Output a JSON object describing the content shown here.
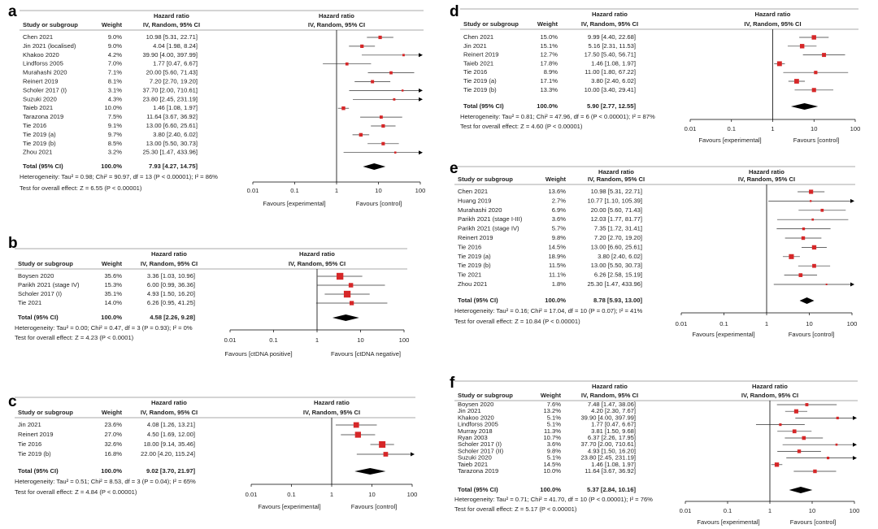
{
  "chart_data": [
    {
      "type": "forest",
      "panel": "a",
      "headers": {
        "study": "Study or subgroup",
        "weight": "Weight",
        "hr_title": "Hazard ratio",
        "hr_method": "IV, Random, 95% CI",
        "plot_title": "Hazard ratio",
        "plot_method": "IV, Random, 95% CI"
      },
      "rows": [
        {
          "study": "Chen 2021",
          "weight": 9.0,
          "weight_label": "9.0%",
          "hr": 10.98,
          "lo": 5.31,
          "hi": 22.71,
          "ci_label": "10.98 [5.31, 22.71]"
        },
        {
          "study": "Jin 2021 (localised)",
          "weight": 9.0,
          "weight_label": "9.0%",
          "hr": 4.04,
          "lo": 1.98,
          "hi": 8.24,
          "ci_label": "4.04 [1.98, 8.24]"
        },
        {
          "study": "Khakoo 2020",
          "weight": 4.2,
          "weight_label": "4.2%",
          "hr": 39.9,
          "lo": 4.0,
          "hi": 397.99,
          "ci_label": "39.90 [4.00, 397.99]"
        },
        {
          "study": "Lindforss 2005",
          "weight": 7.0,
          "weight_label": "7.0%",
          "hr": 1.77,
          "lo": 0.47,
          "hi": 6.67,
          "ci_label": "1.77 [0.47, 6.67]"
        },
        {
          "study": "Murahashi 2020",
          "weight": 7.1,
          "weight_label": "7.1%",
          "hr": 20.0,
          "lo": 5.6,
          "hi": 71.43,
          "ci_label": "20.00 [5.60, 71.43]"
        },
        {
          "study": "Reinert 2019",
          "weight": 8.1,
          "weight_label": "8.1%",
          "hr": 7.2,
          "lo": 2.7,
          "hi": 19.2,
          "ci_label": "7.20 [2.70, 19.20]"
        },
        {
          "study": "Scholer 2017 (I)",
          "weight": 3.1,
          "weight_label": "3.1%",
          "hr": 37.7,
          "lo": 2.0,
          "hi": 710.61,
          "ci_label": "37.70 [2.00, 710.61]"
        },
        {
          "study": "Suzuki 2020",
          "weight": 4.3,
          "weight_label": "4.3%",
          "hr": 23.8,
          "lo": 2.45,
          "hi": 231.19,
          "ci_label": "23.80 [2.45, 231.19]"
        },
        {
          "study": "Taieb 2021",
          "weight": 10.0,
          "weight_label": "10.0%",
          "hr": 1.46,
          "lo": 1.08,
          "hi": 1.97,
          "ci_label": "1.46 [1.08, 1.97]"
        },
        {
          "study": "Tarazona 2019",
          "weight": 7.5,
          "weight_label": "7.5%",
          "hr": 11.64,
          "lo": 3.67,
          "hi": 36.92,
          "ci_label": "11.64 [3.67, 36.92]"
        },
        {
          "study": "Tie 2016",
          "weight": 9.1,
          "weight_label": "9.1%",
          "hr": 13.0,
          "lo": 6.6,
          "hi": 25.61,
          "ci_label": "13.00 [6.60, 25.61]"
        },
        {
          "study": "Tie 2019 (a)",
          "weight": 9.7,
          "weight_label": "9.7%",
          "hr": 3.8,
          "lo": 2.4,
          "hi": 6.02,
          "ci_label": "3.80 [2.40, 6.02]"
        },
        {
          "study": "Tie 2019 (b)",
          "weight": 8.5,
          "weight_label": "8.5%",
          "hr": 13.0,
          "lo": 5.5,
          "hi": 30.73,
          "ci_label": "13.00 [5.50, 30.73]"
        },
        {
          "study": "Zhou 2021",
          "weight": 3.2,
          "weight_label": "3.2%",
          "hr": 25.3,
          "lo": 1.47,
          "hi": 433.96,
          "ci_label": "25.30 [1.47, 433.96]"
        }
      ],
      "total": {
        "study": "Total (95% CI)",
        "weight": 100.0,
        "weight_label": "100.0%",
        "hr": 7.93,
        "lo": 4.27,
        "hi": 14.75,
        "ci_label": "7.93 [4.27, 14.75]"
      },
      "heterogeneity": "Heterogeneity: Tau² = 0.98; Chi² = 90.97, df = 13 (P < 0.00001); I² = 86%",
      "overall_effect": "Test for overall effect: Z = 6.55 (P < 0.00001)",
      "xscale": "log",
      "xlim": [
        0.01,
        100
      ],
      "xticks": [
        0.01,
        0.1,
        1,
        10,
        100
      ],
      "reference_line": 1,
      "favours_left": "Favours [experimental]",
      "favours_right": "Favours [control]",
      "color": "#d62728"
    },
    {
      "type": "forest",
      "panel": "b",
      "headers": {
        "study": "Study or subgroup",
        "weight": "Weight",
        "hr_title": "Hazard ratio",
        "hr_method": "IV, Random, 95% CI",
        "plot_title": "Hazard ratio",
        "plot_method": "IV, Random, 95% CI"
      },
      "rows": [
        {
          "study": "Boysen 2020",
          "weight": 35.6,
          "weight_label": "35.6%",
          "hr": 3.36,
          "lo": 1.03,
          "hi": 10.96,
          "ci_label": "3.36 [1.03, 10.96]"
        },
        {
          "study": "Parikh 2021 (stage IV)",
          "weight": 15.3,
          "weight_label": "15.3%",
          "hr": 6.0,
          "lo": 0.99,
          "hi": 36.36,
          "ci_label": "6.00 [0.99, 36.36]"
        },
        {
          "study": "Scholer 2017 (I)",
          "weight": 35.1,
          "weight_label": "35.1%",
          "hr": 4.93,
          "lo": 1.5,
          "hi": 16.2,
          "ci_label": "4.93 [1.50, 16.20]"
        },
        {
          "study": "Tie 2021",
          "weight": 14.0,
          "weight_label": "14.0%",
          "hr": 6.26,
          "lo": 0.95,
          "hi": 41.25,
          "ci_label": "6.26 [0.95, 41.25]"
        }
      ],
      "total": {
        "study": "Total (95% CI)",
        "weight": 100.0,
        "weight_label": "100.0%",
        "hr": 4.58,
        "lo": 2.26,
        "hi": 9.28,
        "ci_label": "4.58 [2.26, 9.28]"
      },
      "heterogeneity": "Heterogeneity: Tau² = 0.00; Chi² = 0.47, df = 3 (P = 0.93); I² = 0%",
      "overall_effect": "Test for overall effect: Z = 4.23 (P < 0.0001)",
      "xscale": "log",
      "xlim": [
        0.01,
        100
      ],
      "xticks": [
        0.01,
        0.1,
        1,
        10,
        100
      ],
      "reference_line": 1,
      "favours_left": "Favours [ctDNA positive]",
      "favours_right": "Favours [ctDNA negative]",
      "color": "#d62728"
    },
    {
      "type": "forest",
      "panel": "c",
      "headers": {
        "study": "Study or subgroup",
        "weight": "Weight",
        "hr_title": "Hazard ratio",
        "hr_method": "IV, Random, 95% CI",
        "plot_title": "Hazard ratio",
        "plot_method": "IV, Random, 95% CI"
      },
      "rows": [
        {
          "study": "Jin 2021",
          "weight": 23.6,
          "weight_label": "23.6%",
          "hr": 4.08,
          "lo": 1.26,
          "hi": 13.21,
          "ci_label": "4.08 [1.26, 13.21]"
        },
        {
          "study": "Reinert 2019",
          "weight": 27.0,
          "weight_label": "27.0%",
          "hr": 4.5,
          "lo": 1.69,
          "hi": 12.0,
          "ci_label": "4.50 [1.69, 12.00]"
        },
        {
          "study": "Tie 2016",
          "weight": 32.6,
          "weight_label": "32.6%",
          "hr": 18.0,
          "lo": 9.14,
          "hi": 35.46,
          "ci_label": "18.00 [9.14, 35.46]"
        },
        {
          "study": "Tie 2019 (b)",
          "weight": 16.8,
          "weight_label": "16.8%",
          "hr": 22.0,
          "lo": 4.2,
          "hi": 115.24,
          "ci_label": "22.00 [4.20, 115.24]"
        }
      ],
      "total": {
        "study": "Total (95% CI)",
        "weight": 100.0,
        "weight_label": "100.0%",
        "hr": 9.02,
        "lo": 3.7,
        "hi": 21.97,
        "ci_label": "9.02 [3.70, 21.97]"
      },
      "heterogeneity": "Heterogeneity: Tau² = 0.51; Chi² = 8.53, df = 3 (P = 0.04); I² = 65%",
      "overall_effect": "Test for overall effect: Z = 4.84 (P < 0.00001)",
      "xscale": "log",
      "xlim": [
        0.01,
        100
      ],
      "xticks": [
        0.01,
        0.1,
        1,
        10,
        100
      ],
      "reference_line": 1,
      "favours_left": "Favours [experimental]",
      "favours_right": "Favours [control]",
      "color": "#d62728"
    },
    {
      "type": "forest",
      "panel": "d",
      "headers": {
        "study": "Study or subgroup",
        "weight": "Weight",
        "hr_title": "Hazard ratio",
        "hr_method": "IV, Random, 95% CI",
        "plot_title": "Hazard ratio",
        "plot_method": "IV, Random, 95% CI"
      },
      "rows": [
        {
          "study": "Chen 2021",
          "weight": 15.0,
          "weight_label": "15.0%",
          "hr": 9.99,
          "lo": 4.4,
          "hi": 22.68,
          "ci_label": "9.99 [4.40, 22.68]"
        },
        {
          "study": "Jin 2021",
          "weight": 15.1,
          "weight_label": "15.1%",
          "hr": 5.16,
          "lo": 2.31,
          "hi": 11.53,
          "ci_label": "5.16 [2.31, 11.53]"
        },
        {
          "study": "Reinert 2019",
          "weight": 12.7,
          "weight_label": "12.7%",
          "hr": 17.5,
          "lo": 5.4,
          "hi": 56.71,
          "ci_label": "17.50 [5.40, 56.71]"
        },
        {
          "study": "Taieb 2021",
          "weight": 17.8,
          "weight_label": "17.8%",
          "hr": 1.46,
          "lo": 1.08,
          "hi": 1.97,
          "ci_label": "1.46 [1.08, 1.97]"
        },
        {
          "study": "Tie 2016",
          "weight": 8.9,
          "weight_label": "8.9%",
          "hr": 11.0,
          "lo": 1.8,
          "hi": 67.22,
          "ci_label": "11.00 [1.80, 67.22]"
        },
        {
          "study": "Tie 2019 (a)",
          "weight": 17.1,
          "weight_label": "17.1%",
          "hr": 3.8,
          "lo": 2.4,
          "hi": 6.02,
          "ci_label": "3.80 [2.40, 6.02]"
        },
        {
          "study": "Tie 2019 (b)",
          "weight": 13.3,
          "weight_label": "13.3%",
          "hr": 10.0,
          "lo": 3.4,
          "hi": 29.41,
          "ci_label": "10.00 [3.40, 29.41]"
        }
      ],
      "total": {
        "study": "Total (95% CI)",
        "weight": 100.0,
        "weight_label": "100.0%",
        "hr": 5.9,
        "lo": 2.77,
        "hi": 12.55,
        "ci_label": "5.90 [2.77, 12.55]"
      },
      "heterogeneity": "Heterogeneity: Tau² = 0.81; Chi² = 47.96, df = 6 (P < 0.00001); I² = 87%",
      "overall_effect": "Test for overall effect: Z = 4.60 (P < 0.00001)",
      "xscale": "log",
      "xlim": [
        0.01,
        100
      ],
      "xticks": [
        0.01,
        0.1,
        1,
        10,
        100
      ],
      "reference_line": 1,
      "favours_left": "Favours [experimental]",
      "favours_right": "Favours [control]",
      "color": "#d62728"
    },
    {
      "type": "forest",
      "panel": "e",
      "headers": {
        "study": "Study or subgroup",
        "weight": "Weight",
        "hr_title": "Hazard ratio",
        "hr_method": "IV, Random, 95% CI",
        "plot_title": "Hazard ratio",
        "plot_method": "IV, Random, 95% CI"
      },
      "rows": [
        {
          "study": "Chen 2021",
          "weight": 13.6,
          "weight_label": "13.6%",
          "hr": 10.98,
          "lo": 5.31,
          "hi": 22.71,
          "ci_label": "10.98 [5.31, 22.71]"
        },
        {
          "study": "Huang 2019",
          "weight": 2.7,
          "weight_label": "2.7%",
          "hr": 10.77,
          "lo": 1.1,
          "hi": 105.39,
          "ci_label": "10.77 [1.10, 105.39]"
        },
        {
          "study": "Murahashi 2020",
          "weight": 6.9,
          "weight_label": "6.9%",
          "hr": 20.0,
          "lo": 5.6,
          "hi": 71.43,
          "ci_label": "20.00 [5.60, 71.43]"
        },
        {
          "study": "Parikh 2021 (stage I-III)",
          "weight": 3.6,
          "weight_label": "3.6%",
          "hr": 12.03,
          "lo": 1.77,
          "hi": 81.77,
          "ci_label": "12.03 [1.77, 81.77]"
        },
        {
          "study": "Parikh 2021 (stage IV)",
          "weight": 5.7,
          "weight_label": "5.7%",
          "hr": 7.35,
          "lo": 1.72,
          "hi": 31.41,
          "ci_label": "7.35 [1.72, 31.41]"
        },
        {
          "study": "Reinert 2019",
          "weight": 9.8,
          "weight_label": "9.8%",
          "hr": 7.2,
          "lo": 2.7,
          "hi": 19.2,
          "ci_label": "7.20 [2.70, 19.20]"
        },
        {
          "study": "Tie 2016",
          "weight": 14.5,
          "weight_label": "14.5%",
          "hr": 13.0,
          "lo": 6.6,
          "hi": 25.61,
          "ci_label": "13.00 [6.60, 25.61]"
        },
        {
          "study": "Tie 2019 (a)",
          "weight": 18.9,
          "weight_label": "18.9%",
          "hr": 3.8,
          "lo": 2.4,
          "hi": 6.02,
          "ci_label": "3.80 [2.40, 6.02]"
        },
        {
          "study": "Tie 2019 (b)",
          "weight": 11.5,
          "weight_label": "11.5%",
          "hr": 13.0,
          "lo": 5.5,
          "hi": 30.73,
          "ci_label": "13.00 [5.50, 30.73]"
        },
        {
          "study": "Tie 2021",
          "weight": 11.1,
          "weight_label": "11.1%",
          "hr": 6.26,
          "lo": 2.58,
          "hi": 15.19,
          "ci_label": "6.26 [2.58, 15.19]"
        },
        {
          "study": "Zhou 2021",
          "weight": 1.8,
          "weight_label": "1.8%",
          "hr": 25.3,
          "lo": 1.47,
          "hi": 433.96,
          "ci_label": "25.30 [1.47, 433.96]"
        }
      ],
      "total": {
        "study": "Total (95% CI)",
        "weight": 100.0,
        "weight_label": "100.0%",
        "hr": 8.78,
        "lo": 5.93,
        "hi": 13.0,
        "ci_label": "8.78 [5.93, 13.00]"
      },
      "heterogeneity": "Heterogeneity: Tau² = 0.16; Chi² = 17.04, df = 10 (P = 0.07); I² = 41%",
      "overall_effect": "Test for overall effect: Z = 10.84 (P < 0.00001)",
      "xscale": "log",
      "xlim": [
        0.01,
        100
      ],
      "xticks": [
        0.01,
        0.1,
        1,
        10,
        100
      ],
      "reference_line": 1,
      "favours_left": "Favours [experimental]",
      "favours_right": "Favours [control]",
      "color": "#d62728"
    },
    {
      "type": "forest",
      "panel": "f",
      "headers": {
        "study": "Study or subgroup",
        "weight": "Weight",
        "hr_title": "Hazard ratio",
        "hr_method": "IV, Random, 95% CI",
        "plot_title": "Hazard ratio",
        "plot_method": "IV, Random, 95% CI"
      },
      "rows": [
        {
          "study": "Boysen 2020",
          "weight": 7.6,
          "weight_label": "7.6%",
          "hr": 7.48,
          "lo": 1.47,
          "hi": 38.06,
          "ci_label": "7.48 [1.47, 38.06]"
        },
        {
          "study": "Jin 2021",
          "weight": 13.2,
          "weight_label": "13.2%",
          "hr": 4.2,
          "lo": 2.3,
          "hi": 7.67,
          "ci_label": "4.20 [2.30, 7.67]"
        },
        {
          "study": "Khakoo 2020",
          "weight": 5.1,
          "weight_label": "5.1%",
          "hr": 39.9,
          "lo": 4.0,
          "hi": 397.99,
          "ci_label": "39.90 [4.00, 397.99]"
        },
        {
          "study": "Lindforss 2005",
          "weight": 5.1,
          "weight_label": "5.1%",
          "hr": 1.77,
          "lo": 0.47,
          "hi": 6.67,
          "ci_label": "1.77 [0.47, 6.67]"
        },
        {
          "study": "Murray 2018",
          "weight": 11.3,
          "weight_label": "11.3%",
          "hr": 3.81,
          "lo": 1.5,
          "hi": 9.68,
          "ci_label": "3.81 [1.50, 9.68]"
        },
        {
          "study": "Ryan 2003",
          "weight": 10.7,
          "weight_label": "10.7%",
          "hr": 6.37,
          "lo": 2.26,
          "hi": 17.95,
          "ci_label": "6.37 [2.26, 17.95]"
        },
        {
          "study": "Scholer 2017 (I)",
          "weight": 3.6,
          "weight_label": "3.6%",
          "hr": 37.7,
          "lo": 2.0,
          "hi": 710.61,
          "ci_label": "37.70 [2.00, 710.61]"
        },
        {
          "study": "Scholer 2017 (II)",
          "weight": 9.8,
          "weight_label": "9.8%",
          "hr": 4.93,
          "lo": 1.5,
          "hi": 16.2,
          "ci_label": "4.93 [1.50, 16.20]"
        },
        {
          "study": "Suzuki 2020",
          "weight": 5.1,
          "weight_label": "5.1%",
          "hr": 23.8,
          "lo": 2.45,
          "hi": 231.19,
          "ci_label": "23.80 [2.45, 231.19]"
        },
        {
          "study": "Taieb 2021",
          "weight": 14.5,
          "weight_label": "14.5%",
          "hr": 1.46,
          "lo": 1.08,
          "hi": 1.97,
          "ci_label": "1.46 [1.08, 1.97]"
        },
        {
          "study": "Tarazona 2019",
          "weight": 10.0,
          "weight_label": "10.0%",
          "hr": 11.64,
          "lo": 3.67,
          "hi": 36.92,
          "ci_label": "11.64 [3.67, 36.92]"
        }
      ],
      "total": {
        "study": "Total (95% CI)",
        "weight": 100.0,
        "weight_label": "100.0%",
        "hr": 5.37,
        "lo": 2.84,
        "hi": 10.16,
        "ci_label": "5.37 [2.84, 10.16]"
      },
      "heterogeneity": "Heterogeneity: Tau² = 0.71; Chi² = 41.70, df = 10 (P < 0.00001); I² = 76%",
      "overall_effect": "Test for overall effect: Z = 5.17 (P < 0.00001)",
      "xscale": "log",
      "xlim": [
        0.01,
        100
      ],
      "xticks": [
        0.01,
        0.1,
        1,
        10,
        100
      ],
      "reference_line": 1,
      "favours_left": "Favours [experimental]",
      "favours_right": "Favours [control]",
      "color": "#d62728"
    }
  ]
}
